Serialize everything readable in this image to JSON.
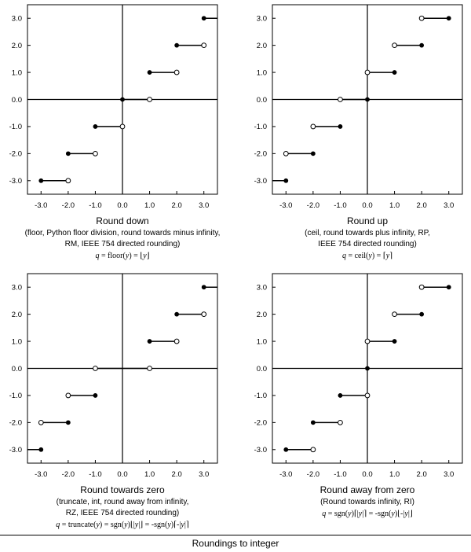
{
  "footer_title": "Roundings to integer",
  "chart_data": [
    {
      "type": "scatter",
      "title": "Round down",
      "subtitle": [
        "(floor, Python floor division, round towards minus infinity,",
        "RM, IEEE 754 directed rounding)"
      ],
      "formula": [
        [
          "q",
          "it"
        ],
        [
          " = floor(",
          ""
        ],
        [
          "y",
          "it"
        ],
        [
          ") = ⌊",
          ""
        ],
        [
          "y",
          "it"
        ],
        [
          "⌋",
          ""
        ]
      ],
      "x_ticks": [
        -3.0,
        -2.0,
        -1.0,
        0.0,
        1.0,
        2.0,
        3.0
      ],
      "y_ticks": [
        -3.0,
        -2.0,
        -1.0,
        0.0,
        1.0,
        2.0,
        3.0
      ],
      "x_tick_labels": [
        "-3.0",
        "-2.0",
        "-1.0",
        "0.0",
        "1.0",
        "2.0",
        "3.0"
      ],
      "y_tick_labels": [
        "-3.0",
        "-2.0",
        "-1.0",
        "0.0",
        "1.0",
        "2.0",
        "3.0"
      ],
      "xlim": [
        -3.5,
        3.5
      ],
      "ylim": [
        -3.5,
        3.5
      ],
      "segments": [
        {
          "y": 3,
          "x1": 3,
          "x2": 3.5,
          "c1": "closed",
          "c2": "none"
        },
        {
          "y": 2,
          "x1": 2,
          "x2": 3,
          "c1": "closed",
          "c2": "open"
        },
        {
          "y": 1,
          "x1": 1,
          "x2": 2,
          "c1": "closed",
          "c2": "open"
        },
        {
          "y": 0,
          "x1": 0,
          "x2": 1,
          "c1": "closed",
          "c2": "open"
        },
        {
          "y": -1,
          "x1": -1,
          "x2": 0,
          "c1": "closed",
          "c2": "open"
        },
        {
          "y": -2,
          "x1": -2,
          "x2": -1,
          "c1": "closed",
          "c2": "open"
        },
        {
          "y": -3,
          "x1": -3,
          "x2": -2,
          "c1": "closed",
          "c2": "open"
        }
      ]
    },
    {
      "type": "scatter",
      "title": "Round up",
      "subtitle": [
        "(ceil, round towards plus infinity, RP,",
        "IEEE 754 directed rounding)"
      ],
      "formula": [
        [
          "q",
          "it"
        ],
        [
          " = ceil(",
          ""
        ],
        [
          "y",
          "it"
        ],
        [
          ") = ⌈",
          ""
        ],
        [
          "y",
          "it"
        ],
        [
          "⌉",
          ""
        ]
      ],
      "x_ticks": [
        -3.0,
        -2.0,
        -1.0,
        0.0,
        1.0,
        2.0,
        3.0
      ],
      "y_ticks": [
        -3.0,
        -2.0,
        -1.0,
        0.0,
        1.0,
        2.0,
        3.0
      ],
      "x_tick_labels": [
        "-3.0",
        "-2.0",
        "-1.0",
        "0.0",
        "1.0",
        "2.0",
        "3.0"
      ],
      "y_tick_labels": [
        "-3.0",
        "-2.0",
        "-1.0",
        "0.0",
        "1.0",
        "2.0",
        "3.0"
      ],
      "xlim": [
        -3.5,
        3.5
      ],
      "ylim": [
        -3.5,
        3.5
      ],
      "segments": [
        {
          "y": 3,
          "x1": 2,
          "x2": 3,
          "c1": "open",
          "c2": "closed"
        },
        {
          "y": 2,
          "x1": 1,
          "x2": 2,
          "c1": "open",
          "c2": "closed"
        },
        {
          "y": 1,
          "x1": 0,
          "x2": 1,
          "c1": "open",
          "c2": "closed"
        },
        {
          "y": 0,
          "x1": -1,
          "x2": 0,
          "c1": "open",
          "c2": "closed"
        },
        {
          "y": -1,
          "x1": -2,
          "x2": -1,
          "c1": "open",
          "c2": "closed"
        },
        {
          "y": -2,
          "x1": -3,
          "x2": -2,
          "c1": "open",
          "c2": "closed"
        },
        {
          "y": -3,
          "x1": -3.5,
          "x2": -3,
          "c1": "none",
          "c2": "closed"
        }
      ]
    },
    {
      "type": "scatter",
      "title": "Round towards zero",
      "subtitle": [
        "(truncate, int, round away from infinity,",
        "RZ, IEEE 754 directed rounding)"
      ],
      "formula": [
        [
          "q",
          "it"
        ],
        [
          " = truncate(",
          ""
        ],
        [
          "y",
          "it"
        ],
        [
          ") = sgn(",
          ""
        ],
        [
          "y",
          "it"
        ],
        [
          ")⌊|",
          ""
        ],
        [
          "y",
          "it"
        ],
        [
          "|⌋ = -sgn(",
          ""
        ],
        [
          "y",
          "it"
        ],
        [
          ")⌈-|",
          ""
        ],
        [
          "y",
          "it"
        ],
        [
          "|⌉",
          ""
        ]
      ],
      "x_ticks": [
        -3.0,
        -2.0,
        -1.0,
        0.0,
        1.0,
        2.0,
        3.0
      ],
      "y_ticks": [
        -3.0,
        -2.0,
        -1.0,
        0.0,
        1.0,
        2.0,
        3.0
      ],
      "x_tick_labels": [
        "-3.0",
        "-2.0",
        "-1.0",
        "0.0",
        "1.0",
        "2.0",
        "3.0"
      ],
      "y_tick_labels": [
        "-3.0",
        "-2.0",
        "-1.0",
        "0.0",
        "1.0",
        "2.0",
        "3.0"
      ],
      "xlim": [
        -3.5,
        3.5
      ],
      "ylim": [
        -3.5,
        3.5
      ],
      "segments": [
        {
          "y": 3,
          "x1": 3,
          "x2": 3.5,
          "c1": "closed",
          "c2": "none"
        },
        {
          "y": 2,
          "x1": 2,
          "x2": 3,
          "c1": "closed",
          "c2": "open"
        },
        {
          "y": 1,
          "x1": 1,
          "x2": 2,
          "c1": "closed",
          "c2": "open"
        },
        {
          "y": 0,
          "x1": -1,
          "x2": 1,
          "c1": "open",
          "c2": "open"
        },
        {
          "y": -1,
          "x1": -2,
          "x2": -1,
          "c1": "open",
          "c2": "closed"
        },
        {
          "y": -2,
          "x1": -3,
          "x2": -2,
          "c1": "open",
          "c2": "closed"
        },
        {
          "y": -3,
          "x1": -3.5,
          "x2": -3,
          "c1": "none",
          "c2": "closed"
        }
      ]
    },
    {
      "type": "scatter",
      "title": "Round away from zero",
      "subtitle": [
        "(Round towards infinity, RI)"
      ],
      "formula": [
        [
          "q",
          "it"
        ],
        [
          " = sgn(",
          ""
        ],
        [
          "y",
          "it"
        ],
        [
          ")⌈|",
          ""
        ],
        [
          "y",
          "it"
        ],
        [
          "|⌉ = -sgn(",
          ""
        ],
        [
          "y",
          "it"
        ],
        [
          ")⌊-|",
          ""
        ],
        [
          "y",
          "it"
        ],
        [
          "|⌋",
          ""
        ]
      ],
      "x_ticks": [
        -3.0,
        -2.0,
        -1.0,
        0.0,
        1.0,
        2.0,
        3.0
      ],
      "y_ticks": [
        -3.0,
        -2.0,
        -1.0,
        0.0,
        1.0,
        2.0,
        3.0
      ],
      "x_tick_labels": [
        "-3.0",
        "-2.0",
        "-1.0",
        "0.0",
        "1.0",
        "2.0",
        "3.0"
      ],
      "y_tick_labels": [
        "-3.0",
        "-2.0",
        "-1.0",
        "0.0",
        "1.0",
        "2.0",
        "3.0"
      ],
      "xlim": [
        -3.5,
        3.5
      ],
      "ylim": [
        -3.5,
        3.5
      ],
      "segments": [
        {
          "y": 3,
          "x1": 2,
          "x2": 3,
          "c1": "open",
          "c2": "closed"
        },
        {
          "y": 2,
          "x1": 1,
          "x2": 2,
          "c1": "open",
          "c2": "closed"
        },
        {
          "y": 1,
          "x1": 0,
          "x2": 1,
          "c1": "open",
          "c2": "closed"
        },
        {
          "y": -1,
          "x1": -1,
          "x2": 0,
          "c1": "closed",
          "c2": "open"
        },
        {
          "y": -2,
          "x1": -2,
          "x2": -1,
          "c1": "closed",
          "c2": "open"
        },
        {
          "y": -3,
          "x1": -3,
          "x2": -2,
          "c1": "closed",
          "c2": "open"
        }
      ],
      "points": [
        {
          "x": 0,
          "y": 0,
          "c": "closed"
        }
      ]
    }
  ]
}
